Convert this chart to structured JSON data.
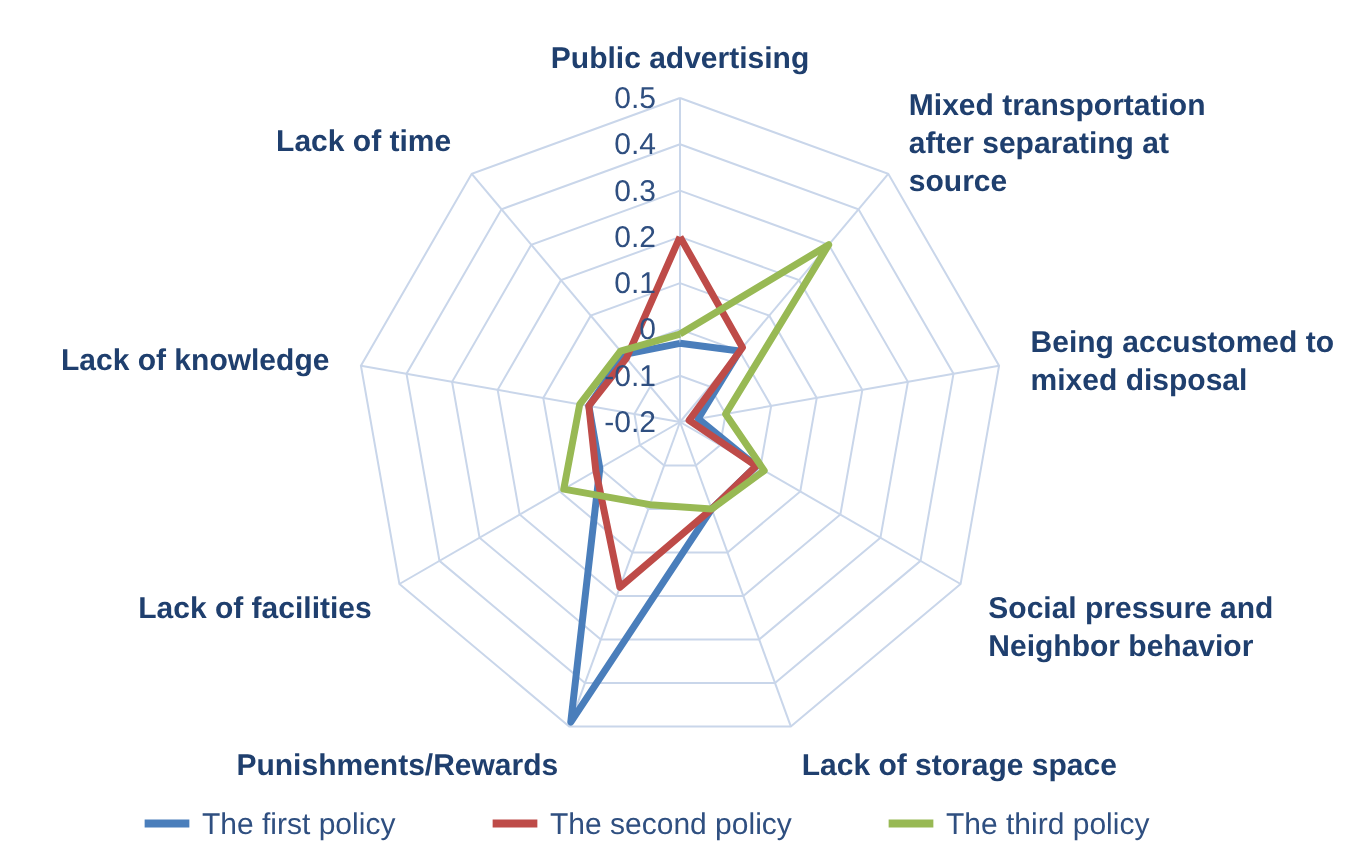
{
  "chart_data": {
    "type": "radar",
    "categories": [
      "Public advertising",
      "Mixed transportation after separating at source",
      "Being accustomed to mixed disposal",
      "Social pressure and Neighbor behavior",
      "Lack of storage space",
      "Punishments/Rewards",
      "Lack of facilities",
      "Lack of knowledge",
      "Lack of time"
    ],
    "series": [
      {
        "name": "The first policy",
        "color": "#4a7ebb",
        "values": [
          -0.03,
          0.0,
          -0.16,
          -0.01,
          0.0,
          0.49,
          0.0,
          0.0,
          -0.01
        ]
      },
      {
        "name": "The second policy",
        "color": "#be4b48",
        "values": [
          0.2,
          0.01,
          -0.18,
          -0.01,
          0.0,
          0.18,
          0.01,
          0.0,
          -0.02
        ]
      },
      {
        "name": "The third policy",
        "color": "#98b954",
        "values": [
          -0.01,
          0.3,
          -0.1,
          0.01,
          0.0,
          -0.01,
          0.09,
          0.02,
          0.0
        ]
      }
    ],
    "ylim": [
      -0.2,
      0.5
    ],
    "yticks": [
      -0.2,
      -0.1,
      0,
      0.1,
      0.2,
      0.3,
      0.4,
      0.5
    ],
    "grid": true,
    "legend": "bottom"
  }
}
